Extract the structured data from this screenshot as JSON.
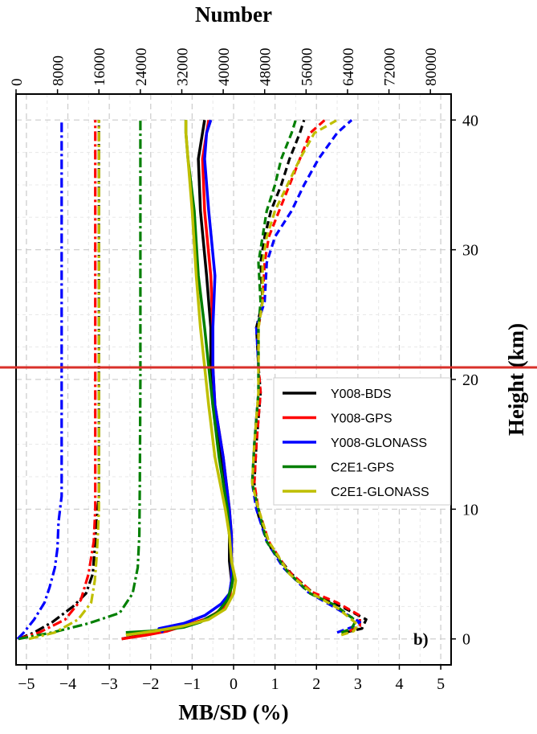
{
  "chart_data": {
    "type": "line",
    "xlabel": "MB/SD (%)",
    "x2label": "Number",
    "ylabel": "Height (km)",
    "panel_label": "b)",
    "xlim": [
      -5.25,
      5.25
    ],
    "x2lim": [
      0,
      84000
    ],
    "ylim": [
      -2,
      42
    ],
    "xticks": [
      -5,
      -4,
      -3,
      -2,
      -1,
      0,
      1,
      2,
      3,
      4,
      5
    ],
    "xtick_labels": [
      "−5",
      "−4",
      "−3",
      "−2",
      "−1",
      "0",
      "1",
      "2",
      "3",
      "4",
      "5"
    ],
    "x2ticks": [
      0,
      8000,
      16000,
      24000,
      32000,
      40000,
      48000,
      56000,
      64000,
      72000,
      80000
    ],
    "x2tick_labels": [
      "0",
      "8000",
      "16000",
      "24000",
      "32000",
      "40000",
      "48000",
      "56000",
      "64000",
      "72000",
      "80000"
    ],
    "yticks": [
      0,
      10,
      20,
      30,
      40
    ],
    "ytick_labels": [
      "0",
      "10",
      "20",
      "30",
      "40"
    ],
    "grid": true,
    "legend_position": "right-middle",
    "series": [
      {
        "name": "Y008-BDS",
        "color": "#000000",
        "mb": [
          [
            -2.7,
            0
          ],
          [
            -2.2,
            0.3
          ],
          [
            -1.7,
            0.6
          ],
          [
            -1.2,
            1
          ],
          [
            -0.7,
            1.5
          ],
          [
            -0.3,
            2.2
          ],
          [
            -0.1,
            3.2
          ],
          [
            -0.05,
            4.5
          ],
          [
            -0.1,
            6
          ],
          [
            -0.1,
            8
          ],
          [
            -0.15,
            10
          ],
          [
            -0.3,
            14
          ],
          [
            -0.5,
            18
          ],
          [
            -0.55,
            21
          ],
          [
            -0.55,
            24
          ],
          [
            -0.65,
            28
          ],
          [
            -0.8,
            33
          ],
          [
            -0.85,
            37
          ],
          [
            -0.75,
            39
          ],
          [
            -0.7,
            40
          ]
        ],
        "sd": [
          [
            2.7,
            0.5
          ],
          [
            3.1,
            0.8
          ],
          [
            3.2,
            1.5
          ],
          [
            2.6,
            2.5
          ],
          [
            2.0,
            3.3
          ],
          [
            1.4,
            5
          ],
          [
            0.9,
            7
          ],
          [
            0.6,
            9.5
          ],
          [
            0.5,
            12
          ],
          [
            0.55,
            15
          ],
          [
            0.6,
            17
          ],
          [
            0.65,
            19
          ],
          [
            0.6,
            21
          ],
          [
            0.55,
            24
          ],
          [
            0.7,
            26
          ],
          [
            0.65,
            29
          ],
          [
            0.75,
            31
          ],
          [
            0.9,
            33
          ],
          [
            1.15,
            35
          ],
          [
            1.35,
            37
          ],
          [
            1.6,
            39
          ],
          [
            1.7,
            40
          ]
        ],
        "number": [
          [
            500,
            0
          ],
          [
            3500,
            0.5
          ],
          [
            7000,
            1.3
          ],
          [
            11000,
            2.5
          ],
          [
            13500,
            3.5
          ],
          [
            14800,
            5
          ],
          [
            15200,
            7
          ],
          [
            15500,
            9
          ],
          [
            16000,
            11
          ],
          [
            16000,
            15
          ],
          [
            16000,
            25
          ],
          [
            16000,
            35
          ],
          [
            16000,
            40
          ]
        ]
      },
      {
        "name": "Y008-GPS",
        "color": "#ff0000",
        "mb": [
          [
            -2.7,
            0
          ],
          [
            -2.1,
            0.3
          ],
          [
            -1.6,
            0.6
          ],
          [
            -1.1,
            1.1
          ],
          [
            -0.6,
            1.6
          ],
          [
            -0.25,
            2.4
          ],
          [
            -0.08,
            3.5
          ],
          [
            -0.05,
            4.5
          ],
          [
            -0.05,
            6
          ],
          [
            -0.05,
            8
          ],
          [
            -0.1,
            10
          ],
          [
            -0.25,
            14
          ],
          [
            -0.45,
            18
          ],
          [
            -0.5,
            21
          ],
          [
            -0.5,
            24
          ],
          [
            -0.55,
            28
          ],
          [
            -0.7,
            33
          ],
          [
            -0.75,
            37
          ],
          [
            -0.65,
            39
          ],
          [
            -0.6,
            40
          ]
        ],
        "sd": [
          [
            2.8,
            0.6
          ],
          [
            3.05,
            1
          ],
          [
            3.05,
            1.8
          ],
          [
            2.5,
            2.8
          ],
          [
            1.9,
            3.6
          ],
          [
            1.3,
            5.3
          ],
          [
            0.85,
            7.5
          ],
          [
            0.6,
            10
          ],
          [
            0.5,
            12
          ],
          [
            0.55,
            15
          ],
          [
            0.6,
            17
          ],
          [
            0.65,
            19
          ],
          [
            0.6,
            21
          ],
          [
            0.6,
            24
          ],
          [
            0.7,
            26
          ],
          [
            0.75,
            29
          ],
          [
            0.85,
            31
          ],
          [
            1.1,
            33
          ],
          [
            1.35,
            35
          ],
          [
            1.6,
            37
          ],
          [
            1.85,
            39
          ],
          [
            2.2,
            40
          ]
        ],
        "number": [
          [
            500,
            0
          ],
          [
            4500,
            0.5
          ],
          [
            9500,
            1.5
          ],
          [
            12500,
            3
          ],
          [
            14000,
            5
          ],
          [
            15000,
            7.5
          ],
          [
            15300,
            10
          ],
          [
            15300,
            15
          ],
          [
            15300,
            25
          ],
          [
            15300,
            35
          ],
          [
            15300,
            40
          ]
        ]
      },
      {
        "name": "Y008-GLONASS",
        "color": "#0000ff",
        "mb": [
          [
            -1.7,
            0.5
          ],
          [
            -1.8,
            0.8
          ],
          [
            -1.2,
            1.2
          ],
          [
            -0.7,
            1.8
          ],
          [
            -0.3,
            2.7
          ],
          [
            -0.1,
            3.5
          ],
          [
            -0.05,
            4.5
          ],
          [
            -0.05,
            6
          ],
          [
            -0.05,
            8
          ],
          [
            -0.1,
            10
          ],
          [
            -0.25,
            14
          ],
          [
            -0.45,
            18
          ],
          [
            -0.5,
            21
          ],
          [
            -0.5,
            24
          ],
          [
            -0.45,
            28
          ],
          [
            -0.6,
            33
          ],
          [
            -0.7,
            37
          ],
          [
            -0.65,
            39
          ],
          [
            -0.55,
            40
          ]
        ],
        "sd": [
          [
            2.5,
            0.5
          ],
          [
            2.85,
            0.9
          ],
          [
            3.05,
            1.3
          ],
          [
            2.4,
            2.5
          ],
          [
            1.8,
            3.6
          ],
          [
            1.2,
            5.5
          ],
          [
            0.8,
            7.5
          ],
          [
            0.55,
            10
          ],
          [
            0.45,
            12
          ],
          [
            0.5,
            15
          ],
          [
            0.55,
            17
          ],
          [
            0.6,
            19
          ],
          [
            0.6,
            21
          ],
          [
            0.55,
            24
          ],
          [
            0.75,
            26
          ],
          [
            0.8,
            29
          ],
          [
            1.0,
            31
          ],
          [
            1.4,
            33
          ],
          [
            1.7,
            35
          ],
          [
            2.05,
            37
          ],
          [
            2.5,
            39
          ],
          [
            2.85,
            40
          ]
        ],
        "number": [
          [
            300,
            0
          ],
          [
            1500,
            0.5
          ],
          [
            3500,
            1.5
          ],
          [
            5500,
            2.8
          ],
          [
            6500,
            4
          ],
          [
            7500,
            5.5
          ],
          [
            8000,
            7
          ],
          [
            8200,
            9
          ],
          [
            8500,
            10
          ],
          [
            8800,
            11
          ],
          [
            8800,
            15
          ],
          [
            8800,
            25
          ],
          [
            8800,
            35
          ],
          [
            8800,
            40
          ]
        ]
      },
      {
        "name": "C2E1-GPS",
        "color": "#007f00",
        "mb": [
          [
            -2.6,
            0.5
          ],
          [
            -2.0,
            0.6
          ],
          [
            -1.2,
            0.9
          ],
          [
            -0.8,
            1.3
          ],
          [
            -0.4,
            2
          ],
          [
            -0.15,
            3
          ],
          [
            -0.05,
            4
          ],
          [
            0,
            5
          ],
          [
            -0.05,
            6
          ],
          [
            -0.1,
            8
          ],
          [
            -0.15,
            10
          ],
          [
            -0.35,
            14
          ],
          [
            -0.5,
            18
          ],
          [
            -0.6,
            21
          ],
          [
            -0.7,
            24
          ],
          [
            -0.85,
            28
          ],
          [
            -0.95,
            33
          ],
          [
            -1.1,
            37
          ],
          [
            -1.15,
            39
          ],
          [
            -1.15,
            40
          ]
        ],
        "sd": [
          [
            2.6,
            0.5
          ],
          [
            2.85,
            0.8
          ],
          [
            2.95,
            1.4
          ],
          [
            2.45,
            2.6
          ],
          [
            1.85,
            3.5
          ],
          [
            1.3,
            5.2
          ],
          [
            0.8,
            7.5
          ],
          [
            0.6,
            10
          ],
          [
            0.45,
            12
          ],
          [
            0.5,
            15
          ],
          [
            0.55,
            17
          ],
          [
            0.6,
            19
          ],
          [
            0.6,
            21
          ],
          [
            0.6,
            24
          ],
          [
            0.65,
            26
          ],
          [
            0.6,
            29
          ],
          [
            0.7,
            31
          ],
          [
            0.8,
            33
          ],
          [
            1.0,
            35
          ],
          [
            1.15,
            37
          ],
          [
            1.4,
            39
          ],
          [
            1.5,
            40
          ]
        ],
        "number": [
          [
            500,
            0
          ],
          [
            7000,
            0.5
          ],
          [
            14000,
            1.2
          ],
          [
            20000,
            2
          ],
          [
            22500,
            3.5
          ],
          [
            23500,
            5.5
          ],
          [
            23800,
            8
          ],
          [
            23900,
            12
          ],
          [
            24000,
            20
          ],
          [
            24000,
            30
          ],
          [
            24000,
            40
          ]
        ]
      },
      {
        "name": "C2E1-GLONASS",
        "color": "#bfbf00",
        "mb": [
          [
            -2.6,
            0.3
          ],
          [
            -1.9,
            0.6
          ],
          [
            -1.2,
            1
          ],
          [
            -0.6,
            1.5
          ],
          [
            -0.2,
            2.3
          ],
          [
            0,
            3.5
          ],
          [
            0.05,
            4.5
          ],
          [
            -0.05,
            6
          ],
          [
            -0.1,
            8
          ],
          [
            -0.2,
            10
          ],
          [
            -0.45,
            14
          ],
          [
            -0.6,
            18
          ],
          [
            -0.7,
            21
          ],
          [
            -0.8,
            24
          ],
          [
            -0.9,
            28
          ],
          [
            -1.0,
            33
          ],
          [
            -1.1,
            37
          ],
          [
            -1.15,
            39
          ],
          [
            -1.15,
            40
          ]
        ],
        "sd": [
          [
            2.6,
            0.3
          ],
          [
            2.9,
            0.6
          ],
          [
            3.0,
            1.1
          ],
          [
            2.5,
            2.4
          ],
          [
            1.95,
            3.4
          ],
          [
            1.35,
            5
          ],
          [
            0.85,
            7.5
          ],
          [
            0.6,
            10
          ],
          [
            0.45,
            12
          ],
          [
            0.5,
            15
          ],
          [
            0.55,
            17
          ],
          [
            0.6,
            19
          ],
          [
            0.6,
            21
          ],
          [
            0.6,
            24
          ],
          [
            0.7,
            26
          ],
          [
            0.7,
            29
          ],
          [
            0.8,
            31
          ],
          [
            1.0,
            33
          ],
          [
            1.3,
            35
          ],
          [
            1.6,
            37
          ],
          [
            1.95,
            39
          ],
          [
            2.5,
            40
          ]
        ],
        "number": [
          [
            2500,
            0
          ],
          [
            7500,
            0.5
          ],
          [
            12000,
            1.5
          ],
          [
            14500,
            2.8
          ],
          [
            15200,
            4.5
          ],
          [
            15500,
            6
          ],
          [
            15800,
            8
          ],
          [
            16000,
            10
          ],
          [
            16000,
            20
          ],
          [
            16000,
            30
          ],
          [
            16000,
            40
          ]
        ]
      }
    ]
  }
}
